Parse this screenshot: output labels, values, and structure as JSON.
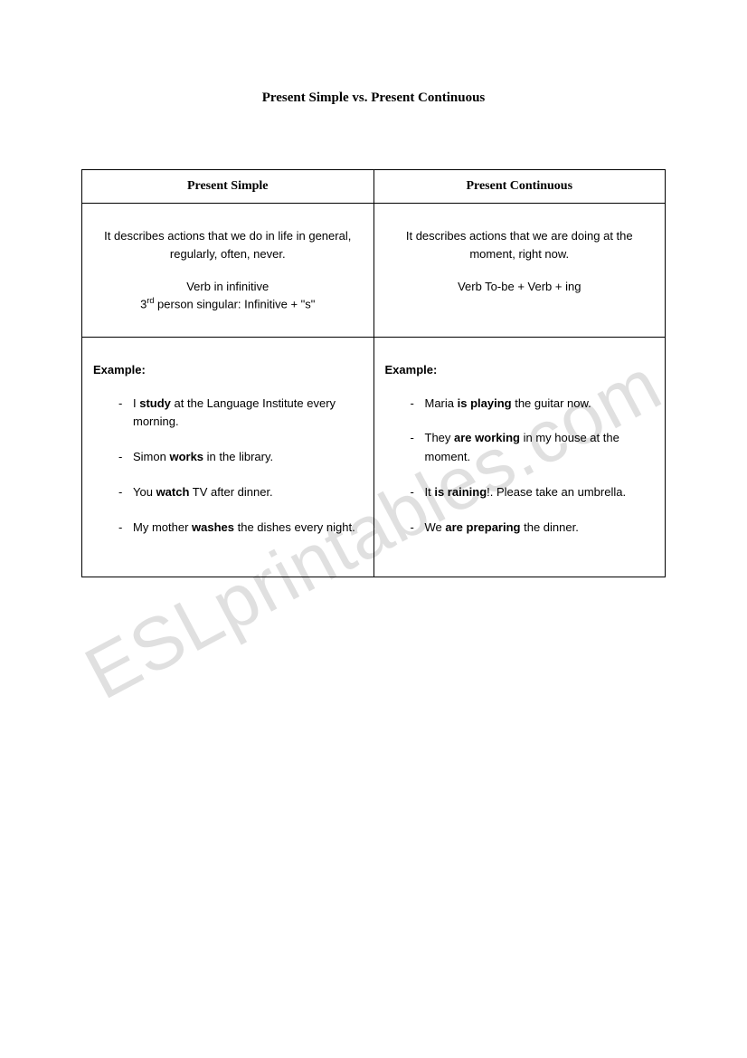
{
  "title": "Present Simple vs. Present Continuous",
  "watermark": "ESLprintables.com",
  "table": {
    "columns": {
      "left": {
        "header": "Present Simple",
        "description": "It describes actions that we do in life in general, regularly, often, never.",
        "verb_form_line1": "Verb in infinitive",
        "verb_form_line2_pre": "3",
        "verb_form_line2_sup": "rd",
        "verb_form_line2_post": " person singular: Infinitive + \"s\"",
        "example_label": "Example:",
        "examples": [
          {
            "pre": "I ",
            "bold": "study",
            "post": " at the Language Institute every morning."
          },
          {
            "pre": "Simon ",
            "bold": "works",
            "post": " in the library."
          },
          {
            "pre": "You ",
            "bold": "watch",
            "post": " TV after dinner."
          },
          {
            "pre": "My mother ",
            "bold": "washes",
            "post": " the dishes every night."
          }
        ]
      },
      "right": {
        "header": "Present Continuous",
        "description": "It describes actions that we are doing at the moment, right now.",
        "verb_form_line1": "Verb To-be + Verb + ing",
        "verb_form_line2_pre": "",
        "verb_form_line2_sup": "",
        "verb_form_line2_post": "",
        "example_label": "Example:",
        "examples": [
          {
            "pre": "Maria ",
            "bold": "is playing",
            "post": " the guitar now."
          },
          {
            "pre": "They ",
            "bold": "are working",
            "post": " in my house at the moment."
          },
          {
            "pre": "It ",
            "bold": "is raining",
            "post": "!. Please take an umbrella."
          },
          {
            "pre": "We ",
            "bold": "are preparing",
            "post": " the dinner."
          }
        ]
      }
    }
  }
}
